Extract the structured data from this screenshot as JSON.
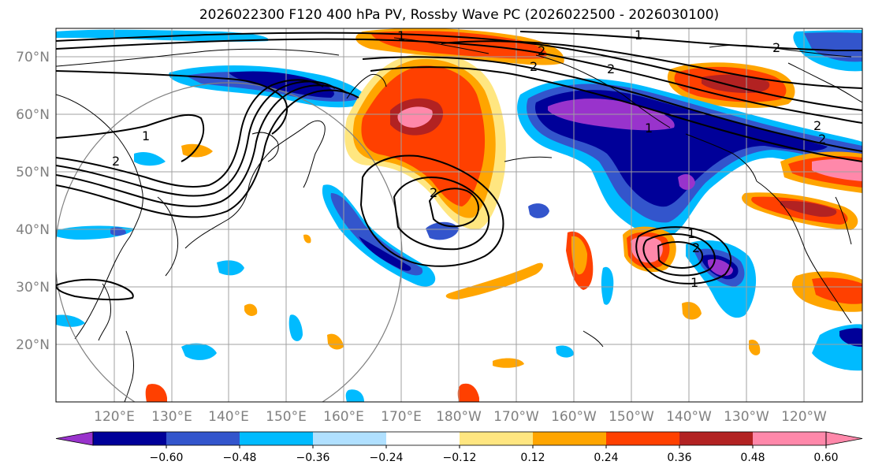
{
  "title": "2026022300 F120 400 hPa PV, Rossby Wave PC (2026022500 - 2026030100)",
  "latitude_labels": [
    "70°N",
    "60°N",
    "50°N",
    "40°N",
    "30°N",
    "20°N"
  ],
  "longitude_labels": [
    "120°E",
    "130°E",
    "140°E",
    "150°E",
    "160°E",
    "170°E",
    "180°W",
    "170°W",
    "160°W",
    "150°W",
    "140°W",
    "130°W",
    "120°W"
  ],
  "colorbar": {
    "ticks": [
      "−0.60",
      "−0.48",
      "−0.36",
      "−0.24",
      "−0.12",
      "0.12",
      "0.24",
      "0.36",
      "0.48",
      "0.60"
    ],
    "colors": [
      "#9933cc",
      "#000099",
      "#3355cc",
      "#00bbff",
      "#b0e0ff",
      "#ffffff",
      "#ffe680",
      "#ffa500",
      "#ff4000",
      "#b22222",
      "#ff88aa",
      "#ff88aa"
    ]
  },
  "contour_labels": [
    "1",
    "2",
    "2",
    "2",
    "1",
    "1",
    "2",
    "2",
    "1",
    "2",
    "2",
    "1",
    "2",
    "2",
    "1"
  ],
  "colors": {
    "purple": "#9933cc",
    "navy": "#000099",
    "blue": "#3355cc",
    "cyan": "#00bbff",
    "lightcyan": "#b0e0ff",
    "yellow": "#ffe680",
    "orange": "#ffa500",
    "redorange": "#ff4000",
    "darkred": "#b22222",
    "pink": "#ff88aa"
  }
}
